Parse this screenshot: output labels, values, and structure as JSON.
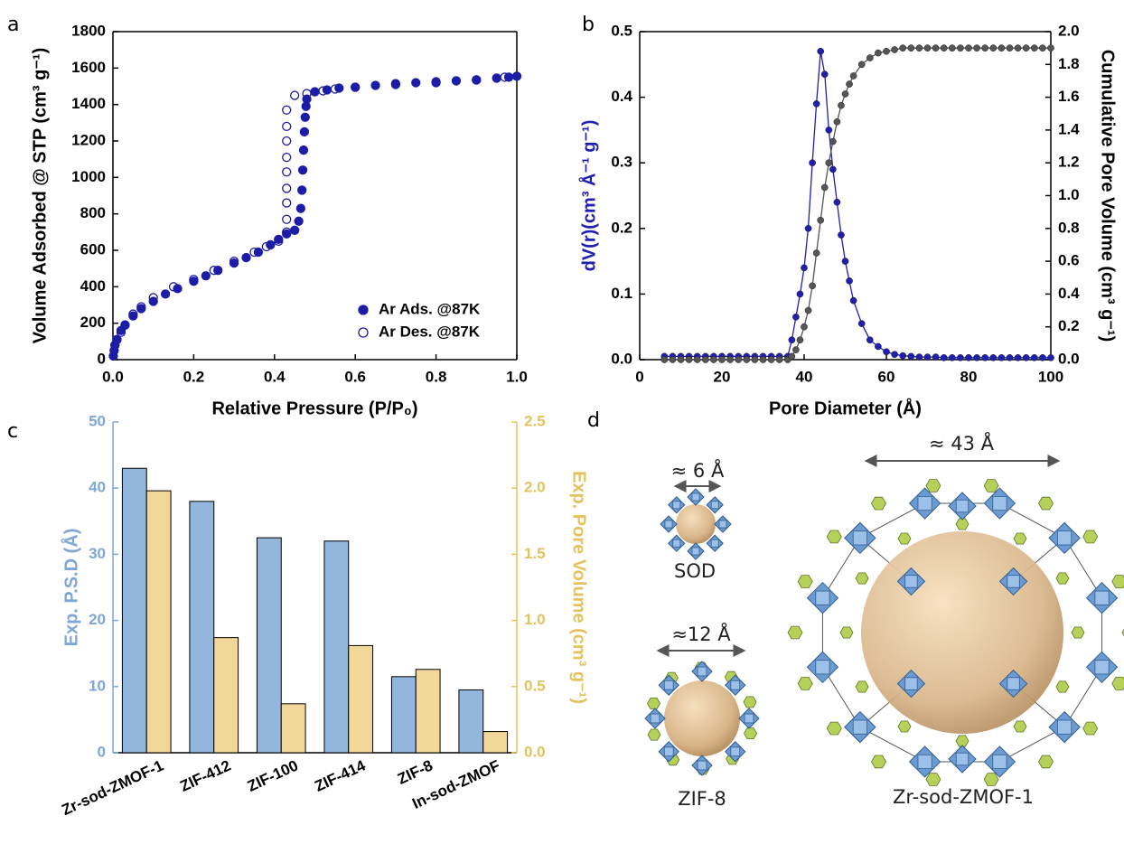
{
  "panel_labels": [
    "a",
    "b",
    "c",
    "d"
  ],
  "structures": [
    {
      "label": "SOD",
      "size": "≈ 6 Å"
    },
    {
      "label": "ZIF-8",
      "size": "≈12 Å"
    },
    {
      "label": "Zr-sod-ZMOF-1",
      "size": "≈ 43 Å"
    }
  ],
  "chart_data": [
    {
      "type": "scatter",
      "xlabel": "Relative Pressure (P/P₀)",
      "ylabel": "Volume Adsorbed @ STP (cm³ g⁻¹)",
      "xlim": [
        0,
        1
      ],
      "ylim": [
        0,
        1800
      ],
      "xticks": [
        {
          "value": 0,
          "label": "0.0"
        },
        0.2,
        0.4,
        0.6,
        0.8,
        {
          "value": 1,
          "label": "1.0"
        }
      ],
      "yticks": [
        0,
        200,
        400,
        600,
        800,
        1000,
        1200,
        1400,
        1600,
        1800
      ],
      "legend": "lower right",
      "series": [
        {
          "name": "Ar Ads. @87K",
          "color": "#1c1ca6",
          "marker": "filled",
          "x": [
            0.001,
            0.003,
            0.005,
            0.01,
            0.02,
            0.03,
            0.05,
            0.07,
            0.1,
            0.13,
            0.16,
            0.2,
            0.23,
            0.26,
            0.3,
            0.33,
            0.36,
            0.39,
            0.41,
            0.43,
            0.45,
            0.46,
            0.465,
            0.468,
            0.47,
            0.472,
            0.474,
            0.476,
            0.478,
            0.48,
            0.5,
            0.53,
            0.56,
            0.6,
            0.65,
            0.7,
            0.75,
            0.8,
            0.85,
            0.9,
            0.95,
            0.98,
            1.0
          ],
          "values": [
            20,
            50,
            80,
            110,
            160,
            190,
            240,
            280,
            320,
            360,
            390,
            430,
            460,
            490,
            530,
            560,
            590,
            630,
            660,
            690,
            710,
            760,
            830,
            930,
            1040,
            1150,
            1250,
            1330,
            1390,
            1430,
            1470,
            1480,
            1490,
            1495,
            1505,
            1515,
            1520,
            1525,
            1530,
            1535,
            1545,
            1550,
            1555
          ]
        },
        {
          "name": "Ar Des. @87K",
          "color": "#1c1ca6",
          "marker": "open",
          "x": [
            0.97,
            0.9,
            0.8,
            0.7,
            0.6,
            0.55,
            0.52,
            0.48,
            0.45,
            0.43,
            0.43,
            0.43,
            0.43,
            0.43,
            0.43,
            0.43,
            0.43,
            0.43,
            0.41,
            0.38,
            0.35,
            0.3,
            0.25,
            0.2,
            0.15,
            0.1,
            0.07,
            0.05,
            0.03,
            0.02,
            0.01,
            0.005
          ],
          "values": [
            1550,
            1535,
            1520,
            1510,
            1495,
            1485,
            1475,
            1460,
            1450,
            1370,
            1280,
            1200,
            1110,
            1030,
            940,
            860,
            770,
            700,
            650,
            620,
            590,
            540,
            490,
            440,
            400,
            340,
            290,
            250,
            190,
            150,
            110,
            80
          ]
        }
      ]
    },
    {
      "type": "line",
      "xlabel": "Pore Diameter (Å)",
      "ylabel": "dV(r)(cm³ Å⁻¹ g⁻¹)",
      "y2label": "Cumulative Pore Volume (cm³ g⁻¹)",
      "ycolor": "#1f1fb0",
      "y2color": "#000000",
      "xlim": [
        0,
        100
      ],
      "ylim": [
        0,
        0.5
      ],
      "y2lim": [
        0,
        2.0
      ],
      "xticks": [
        0,
        20,
        40,
        60,
        80,
        100
      ],
      "yticks": [
        {
          "value": 0,
          "label": "0.0"
        },
        0.1,
        0.2,
        0.3,
        0.4,
        0.5
      ],
      "y2ticks": [
        {
          "value": 0,
          "label": "0.0"
        },
        0.2,
        0.4,
        0.6,
        0.8,
        {
          "value": 1,
          "label": "1.0"
        },
        1.2,
        1.4,
        1.6,
        1.8,
        {
          "value": 2,
          "label": "2.0"
        }
      ],
      "x": [
        6,
        8,
        10,
        12,
        14,
        16,
        18,
        20,
        22,
        24,
        26,
        28,
        30,
        32,
        34,
        36,
        37,
        38,
        39,
        40,
        41,
        42,
        43,
        44,
        45,
        46,
        47,
        48,
        49,
        50,
        51,
        52,
        54,
        56,
        58,
        60,
        62,
        64,
        66,
        68,
        70,
        72,
        74,
        76,
        78,
        80,
        82,
        84,
        86,
        88,
        90,
        92,
        94,
        96,
        98,
        100
      ],
      "series": [
        {
          "color": "#1f1fb0",
          "values": [
            0.005,
            0.005,
            0.005,
            0.005,
            0.005,
            0.005,
            0.005,
            0.005,
            0.005,
            0.005,
            0.005,
            0.005,
            0.005,
            0.005,
            0.005,
            0.005,
            0.03,
            0.065,
            0.1,
            0.14,
            0.2,
            0.3,
            0.39,
            0.47,
            0.435,
            0.35,
            0.29,
            0.24,
            0.19,
            0.15,
            0.12,
            0.09,
            0.055,
            0.03,
            0.02,
            0.012,
            0.008,
            0.006,
            0.005,
            0.004,
            0.004,
            0.004,
            0.003,
            0.003,
            0.003,
            0.003,
            0.003,
            0.003,
            0.003,
            0.003,
            0.003,
            0.003,
            0.003,
            0.003,
            0.003,
            0.003
          ]
        },
        {
          "color": "#555555",
          "axis": "y2",
          "values": [
            0,
            0,
            0,
            0,
            0,
            0,
            0,
            0,
            0,
            0,
            0,
            0,
            0,
            0,
            0,
            0,
            0.02,
            0.06,
            0.12,
            0.2,
            0.3,
            0.45,
            0.65,
            0.85,
            1.05,
            1.2,
            1.33,
            1.45,
            1.55,
            1.62,
            1.68,
            1.73,
            1.8,
            1.84,
            1.87,
            1.88,
            1.89,
            1.9,
            1.9,
            1.9,
            1.9,
            1.9,
            1.9,
            1.9,
            1.9,
            1.9,
            1.9,
            1.9,
            1.9,
            1.9,
            1.9,
            1.9,
            1.9,
            1.9,
            1.9,
            1.9
          ]
        }
      ]
    },
    {
      "type": "bar",
      "ylabel": "Exp. P.S.D (Å)",
      "y2label": "Exp. Pore Volume (cm³ g⁻¹)",
      "ycolor": "#7ea6d6",
      "y2color": "#e3c25f",
      "categories": [
        "Zr-sod-ZMOF-1",
        "ZIF-412",
        "ZIF-100",
        "ZIF-414",
        "ZIF-8",
        "In-sod-ZMOF"
      ],
      "ylim": [
        0,
        50
      ],
      "y2lim": [
        0,
        2.5
      ],
      "yticks": [
        0,
        10,
        20,
        30,
        40,
        50
      ],
      "y2ticks": [
        {
          "value": 0,
          "label": "0.0"
        },
        0.5,
        {
          "value": 1,
          "label": "1.0"
        },
        1.5,
        {
          "value": 2,
          "label": "2.0"
        },
        2.5
      ],
      "series": [
        {
          "color": "#93b6dc",
          "values": [
            43,
            38,
            32.5,
            32,
            11.5,
            9.5
          ]
        },
        {
          "color": "#f2d898",
          "axis": "y2",
          "values": [
            1.98,
            0.87,
            0.37,
            0.81,
            0.63,
            0.16
          ]
        }
      ]
    }
  ]
}
